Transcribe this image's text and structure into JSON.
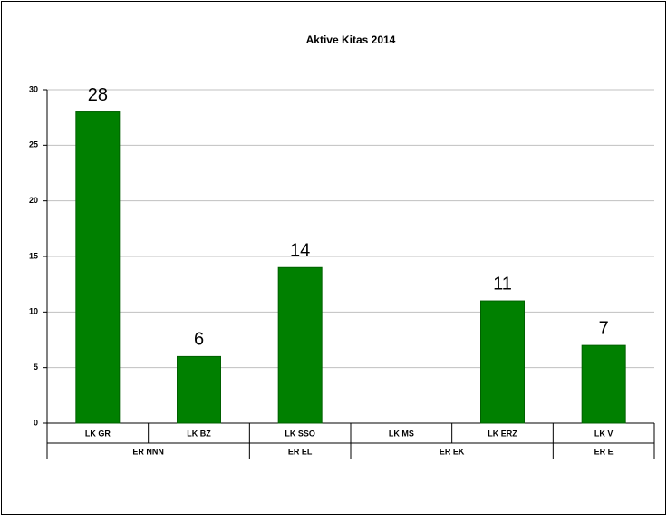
{
  "chart_data": {
    "type": "bar",
    "title": "Aktive Kitas 2014",
    "categories": [
      "LK GR",
      "LK BZ",
      "LK SSO",
      "LK MS",
      "LK ERZ",
      "LK V"
    ],
    "groups": [
      {
        "name": "ER NNN",
        "count": 2
      },
      {
        "name": "ER EL",
        "count": 1
      },
      {
        "name": "ER EK",
        "count": 2
      },
      {
        "name": "ER E",
        "count": 1
      }
    ],
    "values": [
      28,
      6,
      14,
      null,
      11,
      7
    ],
    "color": "#008000",
    "ylim": [
      0,
      30
    ],
    "yticks": [
      0,
      5,
      10,
      15,
      20,
      25,
      30
    ],
    "grid": true
  }
}
